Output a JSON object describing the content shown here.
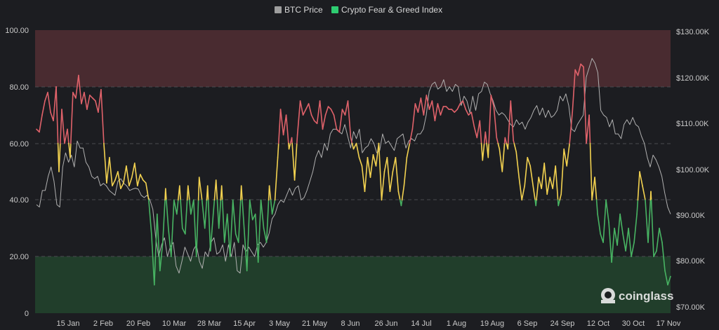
{
  "chart_data": {
    "type": "line",
    "legend": [
      {
        "name": "BTC Price",
        "color": "#9e9e9e"
      },
      {
        "name": "Crypto Fear & Greed Index",
        "color": "#2ecc71"
      }
    ],
    "left_axis": {
      "min": 0,
      "max": 100,
      "ticks": [
        "0",
        "20.00",
        "40.00",
        "60.00",
        "80.00",
        "100.00"
      ]
    },
    "right_axis": {
      "min": 70000,
      "max": 130000,
      "ticks": [
        "$70.00K",
        "$80.00K",
        "$90.00K",
        "$100.00K",
        "$110.00K",
        "$120.00K",
        "$130.00K"
      ]
    },
    "x_ticks": [
      "15 Jan",
      "2 Feb",
      "20 Feb",
      "10 Mar",
      "28 Mar",
      "15 Apr",
      "3 May",
      "21 May",
      "8 Jun",
      "26 Jun",
      "14 Jul",
      "1 Aug",
      "19 Aug",
      "6 Sep",
      "24 Sep",
      "12 Oct",
      "30 Oct",
      "17 Nov"
    ],
    "zones": [
      {
        "name": "greed",
        "from": 80,
        "to": 100,
        "color": "#4f2d32"
      },
      {
        "name": "fear",
        "from": 0,
        "to": 20,
        "color": "#22432c"
      }
    ],
    "colors": {
      "greed": "#e0626a",
      "neutral": "#f3d250",
      "fear": "#48b463",
      "btc": "#b0b0b0"
    },
    "fear_greed_index": [
      65,
      64,
      70,
      75,
      78,
      71,
      68,
      80,
      50,
      72,
      60,
      65,
      55,
      78,
      76,
      84,
      74,
      78,
      72,
      77,
      76,
      75,
      71,
      79,
      60,
      46,
      55,
      45,
      47,
      50,
      44,
      46,
      52,
      45,
      48,
      53,
      45,
      49,
      47,
      46,
      40,
      28,
      10,
      35,
      15,
      25,
      44,
      30,
      20,
      40,
      35,
      45,
      30,
      28,
      45,
      35,
      40,
      20,
      48,
      40,
      30,
      45,
      22,
      35,
      47,
      30,
      45,
      25,
      35,
      20,
      40,
      28,
      25,
      45,
      30,
      15,
      40,
      33,
      35,
      18,
      40,
      30,
      25,
      45,
      35,
      40,
      55,
      72,
      63,
      70,
      58,
      62,
      47,
      63,
      75,
      70,
      72,
      74,
      70,
      68,
      67,
      75,
      65,
      70,
      73,
      72,
      70,
      65,
      64,
      72,
      70,
      75,
      62,
      58,
      60,
      55,
      52,
      43,
      55,
      48,
      56,
      52,
      60,
      40,
      50,
      55,
      43,
      50,
      55,
      43,
      38,
      45,
      55,
      60,
      65,
      74,
      71,
      76,
      70,
      77,
      72,
      75,
      68,
      74,
      70,
      73,
      73,
      72,
      72,
      71,
      72,
      74,
      75,
      72,
      70,
      71,
      66,
      62,
      68,
      54,
      64,
      55,
      77,
      73,
      62,
      58,
      50,
      62,
      58,
      75,
      61,
      57,
      48,
      40,
      45,
      55,
      52,
      45,
      38,
      48,
      44,
      53,
      42,
      48,
      44,
      52,
      38,
      42,
      58,
      52,
      60,
      71,
      86,
      84,
      88,
      87,
      60,
      70,
      40,
      48,
      35,
      28,
      25,
      40,
      32,
      18,
      30,
      24,
      35,
      28,
      22,
      30,
      20,
      25,
      35,
      50,
      45,
      40,
      25,
      43,
      20,
      22,
      30,
      25,
      15,
      10,
      13
    ],
    "btc_price": [
      93000,
      92500,
      96000,
      96000,
      99000,
      101000,
      98000,
      93000,
      92500,
      101000,
      104000,
      102000,
      103500,
      101000,
      106500,
      105000,
      105000,
      102000,
      101000,
      99000,
      98500,
      99000,
      97000,
      97500,
      97000,
      96000,
      95500,
      95000,
      98000,
      98500,
      97500,
      97000,
      96000,
      96300,
      96500,
      96300,
      95000,
      94500,
      95000,
      94000,
      92000,
      86000,
      82000,
      84500,
      86000,
      82000,
      84000,
      85000,
      80000,
      78500,
      81000,
      84000,
      82500,
      81000,
      83500,
      84500,
      81000,
      79500,
      83000,
      82000,
      85000,
      86000,
      82500,
      83000,
      84500,
      81000,
      84500,
      82000,
      85000,
      79000,
      78500,
      84500,
      83000,
      84000,
      83000,
      82000,
      84500,
      85000,
      84000,
      85000,
      87000,
      90000,
      91000,
      93000,
      94000,
      93500,
      95000,
      96500,
      95000,
      96500,
      97000,
      94000,
      94500,
      96000,
      98000,
      100000,
      103000,
      104500,
      103000,
      106000,
      104500,
      108000,
      109000,
      109000,
      108500,
      108000,
      110000,
      107500,
      105000,
      108500,
      107000,
      109000,
      104000,
      105000,
      105500,
      107000,
      106000,
      104000,
      104500,
      108000,
      106000,
      106500,
      105500,
      104500,
      107000,
      107500,
      108000,
      105000,
      106500,
      107000,
      106500,
      108000,
      108000,
      109000,
      112000,
      117000,
      118500,
      119000,
      117500,
      118000,
      119500,
      117000,
      118000,
      117000,
      118500,
      118000,
      114000,
      116000,
      115000,
      112500,
      116000,
      113000,
      116500,
      117000,
      119000,
      118500,
      116500,
      115000,
      113000,
      112000,
      112500,
      112000,
      111000,
      110000,
      109500,
      111000,
      110000,
      110500,
      109000,
      110500,
      111500,
      113000,
      114000,
      112000,
      113500,
      111500,
      113000,
      111500,
      112000,
      113000,
      116000,
      115000,
      116500,
      114000,
      109000,
      108500,
      110000,
      111000,
      112000,
      120000,
      122000,
      124000,
      123000,
      121000,
      113000,
      112000,
      111500,
      109500,
      111000,
      108000,
      108000,
      107000,
      110000,
      111000,
      110000,
      111500,
      110000,
      109500,
      107500,
      106000,
      103000,
      101000,
      103500,
      102500,
      101000,
      99000,
      95500,
      92500,
      91000
    ],
    "watermark": "coinglass"
  }
}
